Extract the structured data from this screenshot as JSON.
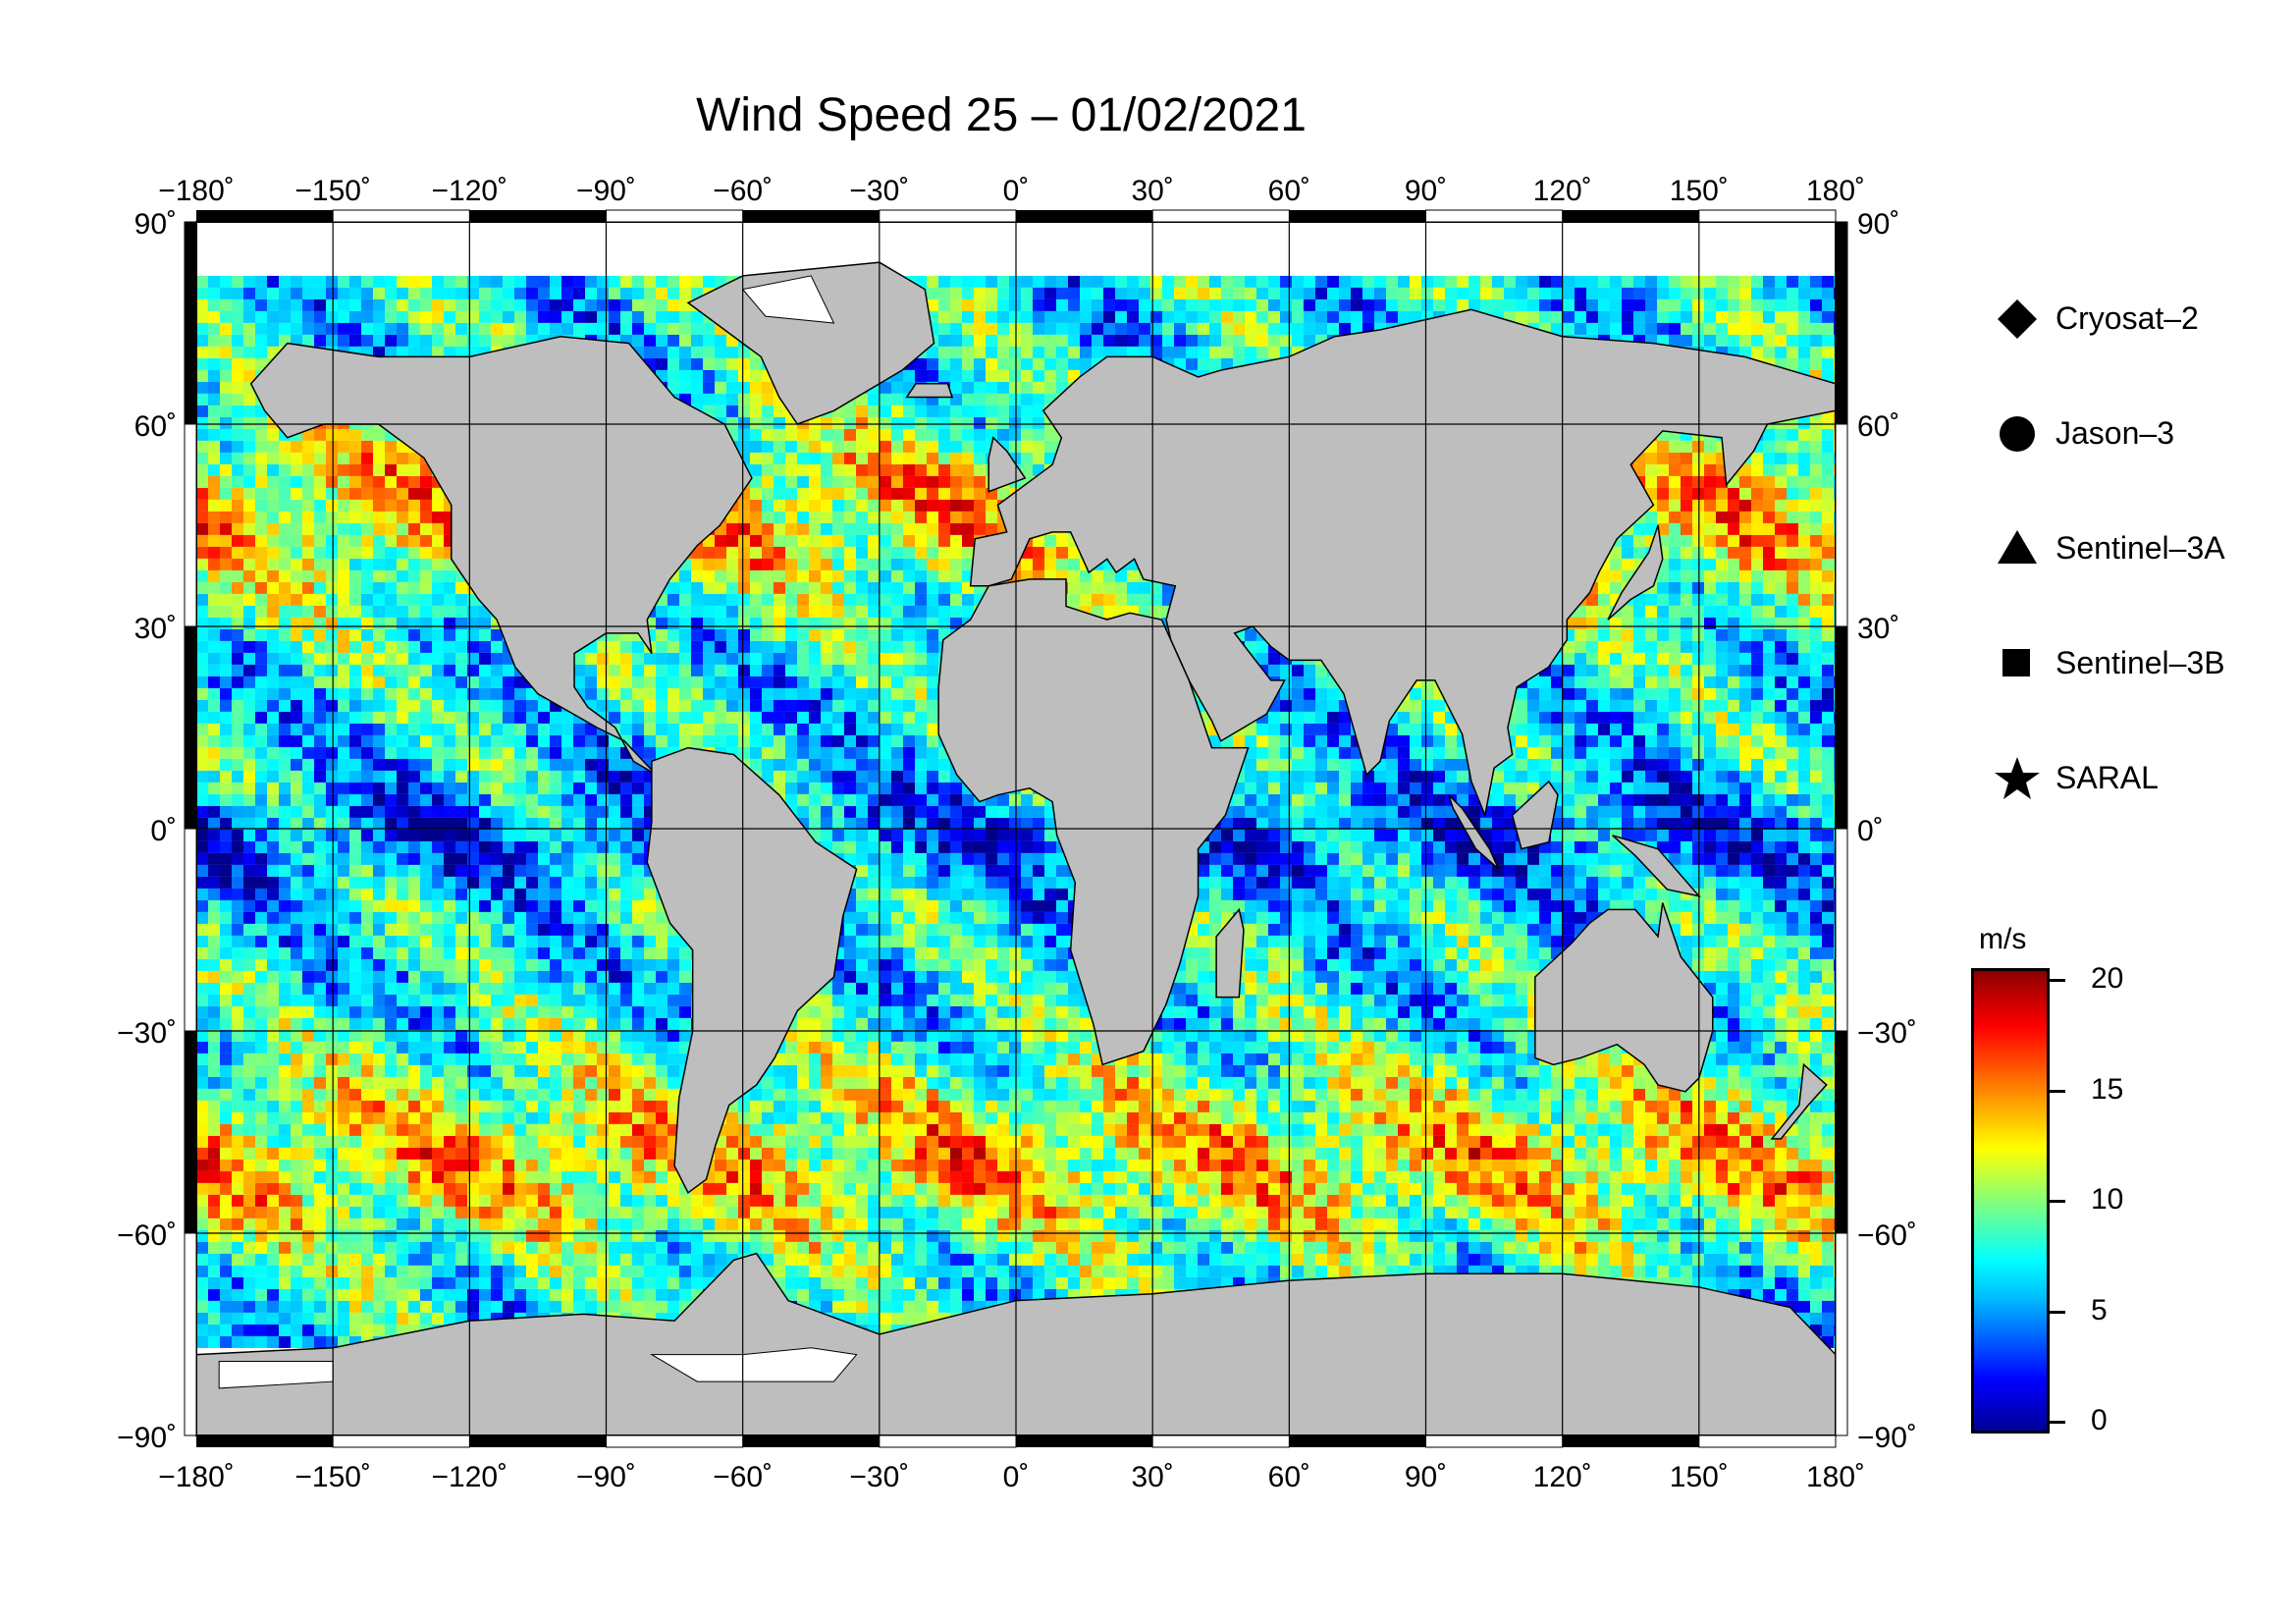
{
  "title": "Wind Speed 25 – 01/02/2021",
  "axes": {
    "lon_ticks": [
      "−180˚",
      "−150˚",
      "−120˚",
      "−90˚",
      "−60˚",
      "−30˚",
      "0˚",
      "30˚",
      "60˚",
      "90˚",
      "120˚",
      "150˚",
      "180˚"
    ],
    "lat_ticks": [
      "90˚",
      "60˚",
      "30˚",
      "0˚",
      "−30˚",
      "−60˚",
      "−90˚"
    ]
  },
  "legend": [
    {
      "label": "Cryosat–2",
      "icon": "diamond"
    },
    {
      "label": "Jason–3",
      "icon": "circle"
    },
    {
      "label": "Sentinel–3A",
      "icon": "triangle"
    },
    {
      "label": "Sentinel–3B",
      "icon": "square"
    },
    {
      "label": "SARAL",
      "icon": "star"
    }
  ],
  "colorbar": {
    "unit": "m/s",
    "min": 0,
    "max": 20,
    "ticks": [
      "20",
      "15",
      "10",
      "5",
      "0"
    ],
    "colors": [
      "#00008b",
      "#0000ff",
      "#00bfff",
      "#00ffff",
      "#7fff7f",
      "#ffff00",
      "#ff8000",
      "#ff0000",
      "#8b0000"
    ]
  },
  "map": {
    "land_color": "#bebebe",
    "ice_color": "#ffffff",
    "projection": "equirectangular",
    "lon_range": [
      -180,
      180
    ],
    "lat_range": [
      -90,
      90
    ]
  }
}
